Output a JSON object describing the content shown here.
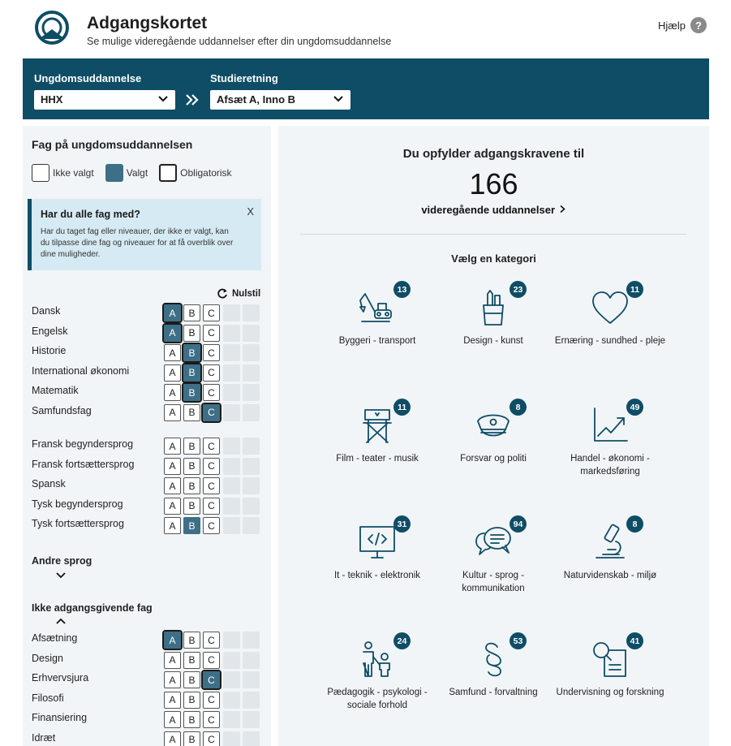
{
  "header": {
    "title": "Adgangskortet",
    "subtitle": "Se mulige videregående uddannelser efter din ungdomsuddannelse",
    "help_label": "Hjælp",
    "help_icon": "?"
  },
  "topbar": {
    "education_label": "Ungdomsuddannelse",
    "education_value": "HHX",
    "direction_label": "Studieretning",
    "direction_value": "Afsæt A, Inno B"
  },
  "subjects_panel": {
    "title": "Fag på ungdomsuddannelsen",
    "legend": {
      "not_chosen": "Ikke valgt",
      "chosen": "Valgt",
      "mandatory": "Obligatorisk"
    },
    "infobox": {
      "title": "Har du alle fag med?",
      "text": "Har du taget fag eller niveauer, der ikke er valgt, kan du tilpasse dine fag og niveauer for at få overblik over dine muligheder.",
      "close": "X"
    },
    "reset_label": "Nulstil",
    "levels": [
      "A",
      "B",
      "C"
    ],
    "mandatory_subjects": [
      {
        "name": "Dansk",
        "selected": "A",
        "mandatory": true
      },
      {
        "name": "Engelsk",
        "selected": "A",
        "mandatory": true
      },
      {
        "name": "Historie",
        "selected": "B",
        "mandatory": true
      },
      {
        "name": "International økonomi",
        "selected": "B",
        "mandatory": true
      },
      {
        "name": "Matematik",
        "selected": "B",
        "mandatory": true
      },
      {
        "name": "Samfundsfag",
        "selected": "C",
        "mandatory": true
      }
    ],
    "language_subjects": [
      {
        "name": "Fransk begyndersprog",
        "selected": null,
        "mandatory": false
      },
      {
        "name": "Fransk fortsættersprog",
        "selected": null,
        "mandatory": false
      },
      {
        "name": "Spansk",
        "selected": null,
        "mandatory": false
      },
      {
        "name": "Tysk begyndersprog",
        "selected": null,
        "mandatory": false
      },
      {
        "name": "Tysk fortsættersprog",
        "selected": "B",
        "mandatory": false
      }
    ],
    "other_languages_label": "Andre sprog",
    "non_admission_label": "Ikke adgangsgivende fag",
    "non_admission_subjects": [
      {
        "name": "Afsætning",
        "selected": "A",
        "mandatory": true
      },
      {
        "name": "Design",
        "selected": null,
        "mandatory": false
      },
      {
        "name": "Erhvervsjura",
        "selected": "C",
        "mandatory": true
      },
      {
        "name": "Filosofi",
        "selected": null,
        "mandatory": false
      },
      {
        "name": "Finansiering",
        "selected": null,
        "mandatory": false
      },
      {
        "name": "Idræt",
        "selected": null,
        "mandatory": false
      }
    ]
  },
  "results": {
    "heading": "Du opfylder adgangskravene til",
    "count": "166",
    "link_label": "videregående uddannelser",
    "category_title": "Vælg en kategori",
    "categories": [
      {
        "label": "Byggeri - transport",
        "count": "13",
        "icon": "excavator-icon"
      },
      {
        "label": "Design - kunst",
        "count": "23",
        "icon": "pencil-cup-icon"
      },
      {
        "label": "Ernæring - sundhed - pleje",
        "count": "11",
        "icon": "heart-icon"
      },
      {
        "label": "Film - teater - musik",
        "count": "11",
        "icon": "director-chair-icon"
      },
      {
        "label": "Forsvar og politi",
        "count": "8",
        "icon": "police-cap-icon"
      },
      {
        "label": "Handel - økonomi - markedsføring",
        "count": "49",
        "icon": "trend-chart-icon"
      },
      {
        "label": "It - teknik - elektronik",
        "count": "31",
        "icon": "monitor-code-icon"
      },
      {
        "label": "Kultur - sprog - kommunikation",
        "count": "94",
        "icon": "speech-bubbles-icon"
      },
      {
        "label": "Naturvidenskab - miljø",
        "count": "8",
        "icon": "microscope-icon"
      },
      {
        "label": "Pædagogik - psykologi - sociale forhold",
        "count": "24",
        "icon": "people-icon"
      },
      {
        "label": "Samfund - forvaltning",
        "count": "53",
        "icon": "paragraph-icon"
      },
      {
        "label": "Undervisning og forskning",
        "count": "41",
        "icon": "magnifier-document-icon"
      }
    ]
  },
  "colors": {
    "brand": "#0f4d66",
    "selected": "#3d6f86",
    "panel": "#f1f5f7",
    "info": "#d6eaf3"
  }
}
